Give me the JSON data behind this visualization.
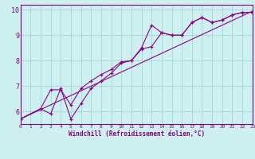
{
  "xlabel": "Windchill (Refroidissement éolien,°C)",
  "xlim": [
    0,
    23
  ],
  "ylim": [
    5.5,
    10.2
  ],
  "yticks": [
    6,
    7,
    8,
    9,
    10
  ],
  "xticks": [
    0,
    1,
    2,
    3,
    4,
    5,
    6,
    7,
    8,
    9,
    10,
    11,
    12,
    13,
    14,
    15,
    16,
    17,
    18,
    19,
    20,
    21,
    22,
    23
  ],
  "line1_x": [
    0,
    2,
    3,
    4,
    5,
    6,
    7,
    8,
    9,
    10,
    11,
    12,
    13,
    14,
    15,
    16,
    17,
    18,
    19,
    20,
    21,
    22,
    23
  ],
  "line1_y": [
    5.7,
    6.1,
    5.9,
    6.9,
    5.7,
    6.3,
    6.9,
    7.2,
    7.5,
    7.9,
    8.0,
    8.5,
    9.4,
    9.1,
    9.0,
    9.0,
    9.5,
    9.7,
    9.5,
    9.6,
    9.8,
    9.9,
    9.9
  ],
  "line2_x": [
    0,
    2,
    3,
    4,
    5,
    6,
    7,
    8,
    9,
    10,
    11,
    12,
    13,
    14,
    15,
    16,
    17,
    18,
    19,
    20,
    21,
    22,
    23
  ],
  "line2_y": [
    5.7,
    6.1,
    6.85,
    6.85,
    6.25,
    6.9,
    7.2,
    7.45,
    7.65,
    7.95,
    8.0,
    8.45,
    8.55,
    9.1,
    9.0,
    9.0,
    9.5,
    9.7,
    9.5,
    9.6,
    9.8,
    9.9,
    9.9
  ],
  "line3_x": [
    0,
    23
  ],
  "line3_y": [
    5.7,
    9.95
  ],
  "color": "#8B008B",
  "bg_color": "#cff0f0",
  "grid_color": "#a0d8d8",
  "label_color": "#800080"
}
